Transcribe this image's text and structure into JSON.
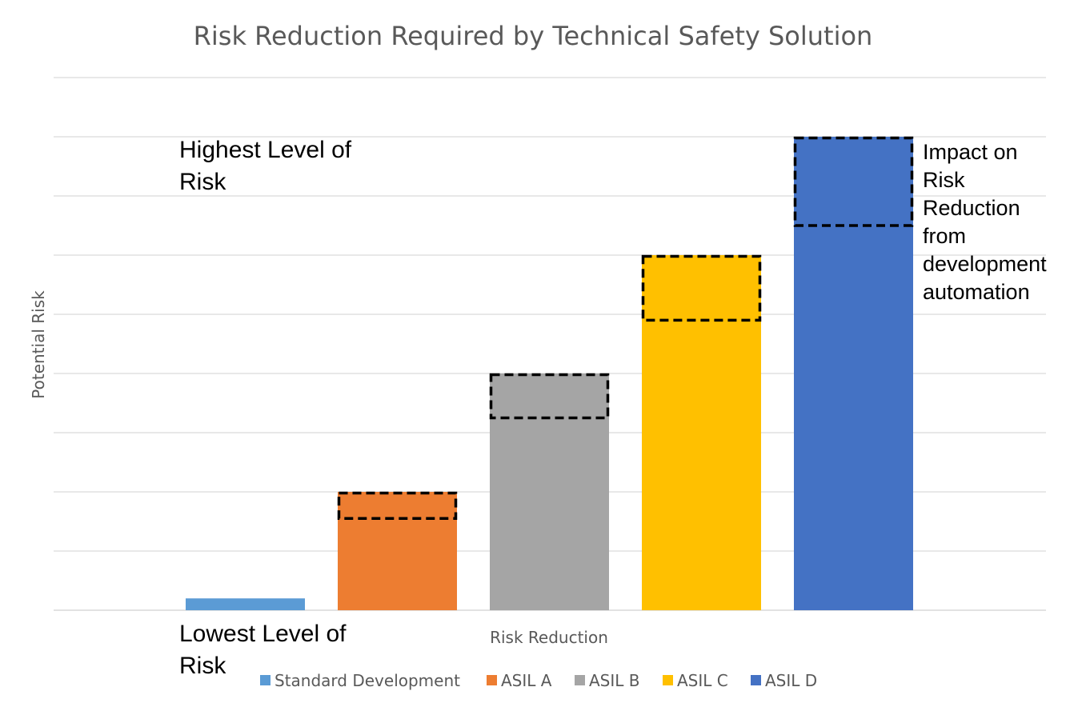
{
  "chart_data": {
    "type": "bar",
    "title": "Risk Reduction Required by Technical Safety Solution",
    "xlabel": "Risk Reduction",
    "ylabel": "Potential Risk",
    "ylim": [
      0,
      9
    ],
    "grid": true,
    "legend_placement": "bottom",
    "categories": [
      "Standard Development",
      "ASIL A",
      "ASIL B",
      "ASIL C",
      "ASIL D"
    ],
    "values": [
      0.2,
      2.0,
      4.0,
      6.0,
      8.0
    ],
    "automation_impact": [
      0,
      0.45,
      0.75,
      1.1,
      1.5
    ],
    "colors": [
      "#5B9BD5",
      "#ED7D31",
      "#A5A5A5",
      "#FFC000",
      "#4472C4"
    ],
    "annotations": {
      "top": [
        "Highest Level of",
        "Risk"
      ],
      "bottom": [
        "Lowest Level of",
        "Risk"
      ],
      "side": [
        "Impact on",
        "Risk",
        "Reduction",
        "from",
        "development",
        "automation"
      ]
    }
  }
}
